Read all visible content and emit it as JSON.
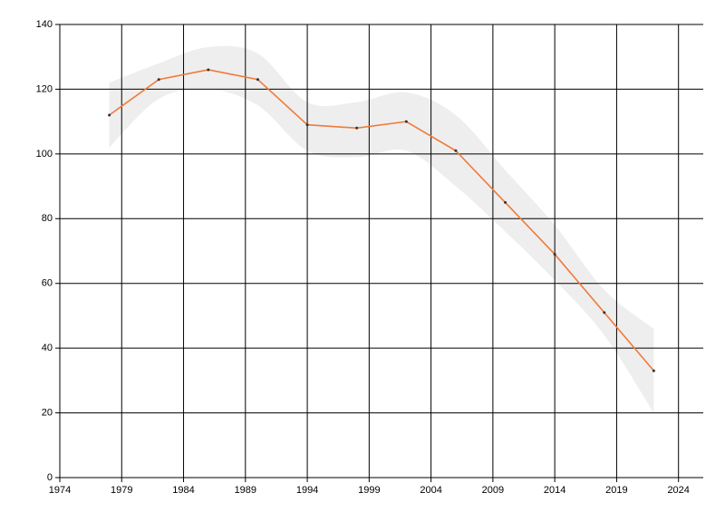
{
  "chart_data": {
    "type": "line",
    "x": [
      1978,
      1982,
      1986,
      1990,
      1994,
      1998,
      2002,
      2006,
      2010,
      2014,
      2018,
      2022
    ],
    "series": [
      {
        "color": "#f07a3a",
        "marker_color": "#333333",
        "values": [
          112,
          123,
          126,
          123,
          109,
          108,
          110,
          101,
          85,
          69,
          51,
          33
        ]
      }
    ],
    "band": {
      "color": "#eeeeee",
      "upper": [
        122,
        128,
        133,
        131,
        116,
        116,
        119,
        112,
        95,
        78,
        58,
        46
      ],
      "lower": [
        102,
        117,
        120,
        115,
        101,
        99,
        101,
        90,
        76,
        61,
        44,
        20
      ]
    },
    "xlim": [
      1974,
      2026
    ],
    "xticks": [
      1974,
      1979,
      1984,
      1989,
      1994,
      1999,
      2004,
      2009,
      2014,
      2019,
      2024
    ],
    "ylim": [
      0,
      140
    ],
    "yticks": [
      0,
      20,
      40,
      60,
      80,
      100,
      120,
      140
    ],
    "grid": true
  }
}
